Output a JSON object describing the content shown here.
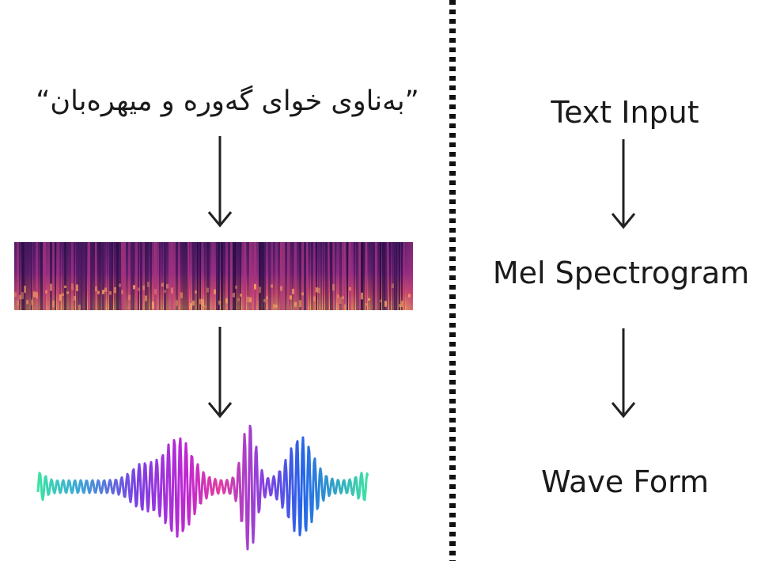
{
  "left": {
    "input_text": "”بەناوی خوای گەورە و میهرەبان“"
  },
  "right": {
    "steps": [
      "Text Input",
      "Mel Spectrogram",
      "Wave Form"
    ]
  },
  "colors": {
    "spectrogram_dark": "#1b0a3d",
    "spectrogram_mid": "#8b2a84",
    "spectrogram_hot": "#f5a063",
    "wave_start": "#3de3a3",
    "wave_mid": "#c026d3",
    "wave_blue": "#2563eb"
  }
}
